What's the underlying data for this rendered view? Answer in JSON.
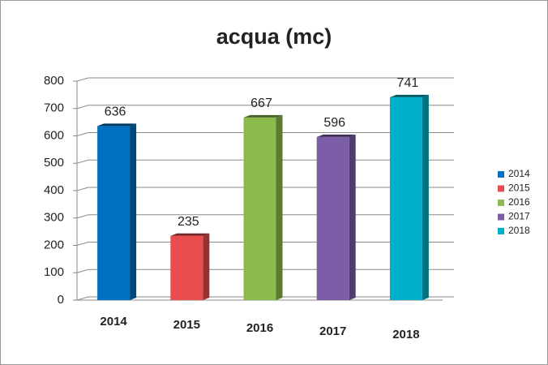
{
  "chart_data": {
    "type": "bar",
    "title": "acqua (mc)",
    "categories": [
      "2014",
      "2015",
      "2016",
      "2017",
      "2018"
    ],
    "series": [
      {
        "name": "2014",
        "color": "#0070c0",
        "values": [
          636,
          null,
          null,
          null,
          null
        ]
      },
      {
        "name": "2015",
        "color": "#e84c4c",
        "values": [
          null,
          235,
          null,
          null,
          null
        ]
      },
      {
        "name": "2016",
        "color": "#8cbb4d",
        "values": [
          null,
          null,
          667,
          null,
          null
        ]
      },
      {
        "name": "2017",
        "color": "#7b5ea7",
        "values": [
          null,
          null,
          null,
          596,
          null
        ]
      },
      {
        "name": "2018",
        "color": "#00b0c8",
        "values": [
          null,
          null,
          null,
          null,
          741
        ]
      }
    ],
    "ylim": [
      0,
      800
    ],
    "yticks": [
      0,
      100,
      200,
      300,
      400,
      500,
      600,
      700,
      800
    ],
    "grid": true,
    "legend": "right"
  }
}
